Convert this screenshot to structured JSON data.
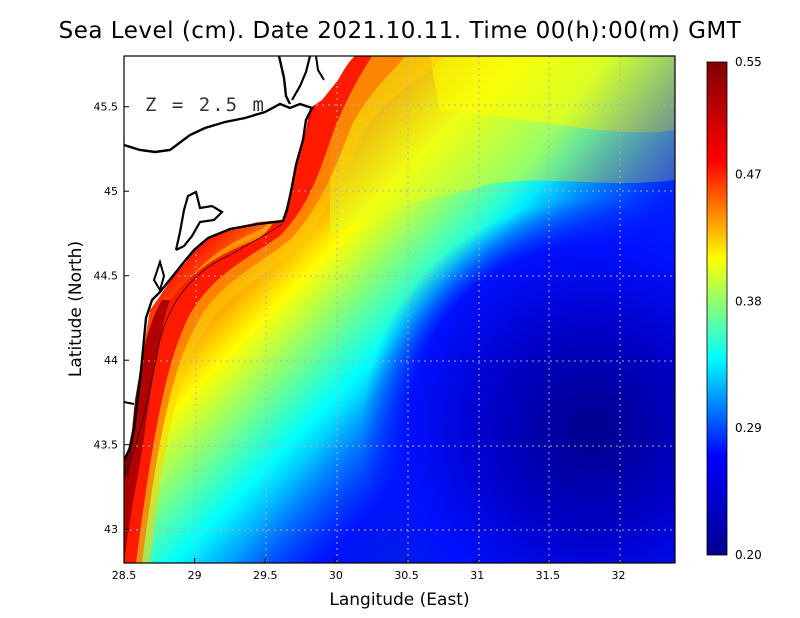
{
  "title": "Sea Level (cm). Date 2021.10.11. Time 00(h):00(m) GMT",
  "map": {
    "depth_label": "Z = 2.5 m",
    "xlabel": "Langitude (East)",
    "ylabel": "Latitude (North)",
    "xlim": [
      28.5,
      32.4
    ],
    "ylim": [
      42.8,
      45.8
    ],
    "xticks": [
      "28.5",
      "29",
      "29.5",
      "30",
      "30.5",
      "31",
      "31.5",
      "32"
    ],
    "yticks": [
      "43",
      "43.5",
      "44",
      "44.5",
      "45",
      "45.5"
    ],
    "grid": true
  },
  "colorbar": {
    "min": 0.2,
    "max": 0.55,
    "tick_labels": [
      "0.55",
      "0.47",
      "0.38",
      "0.29",
      "0.20"
    ],
    "colormap": [
      "#00008f",
      "#0000ff",
      "#00ffff",
      "#ffff00",
      "#ff0000",
      "#800000"
    ]
  },
  "colors": {
    "land": "#ffffff",
    "coastline": "#000000",
    "grid": "#b0b0b0"
  }
}
